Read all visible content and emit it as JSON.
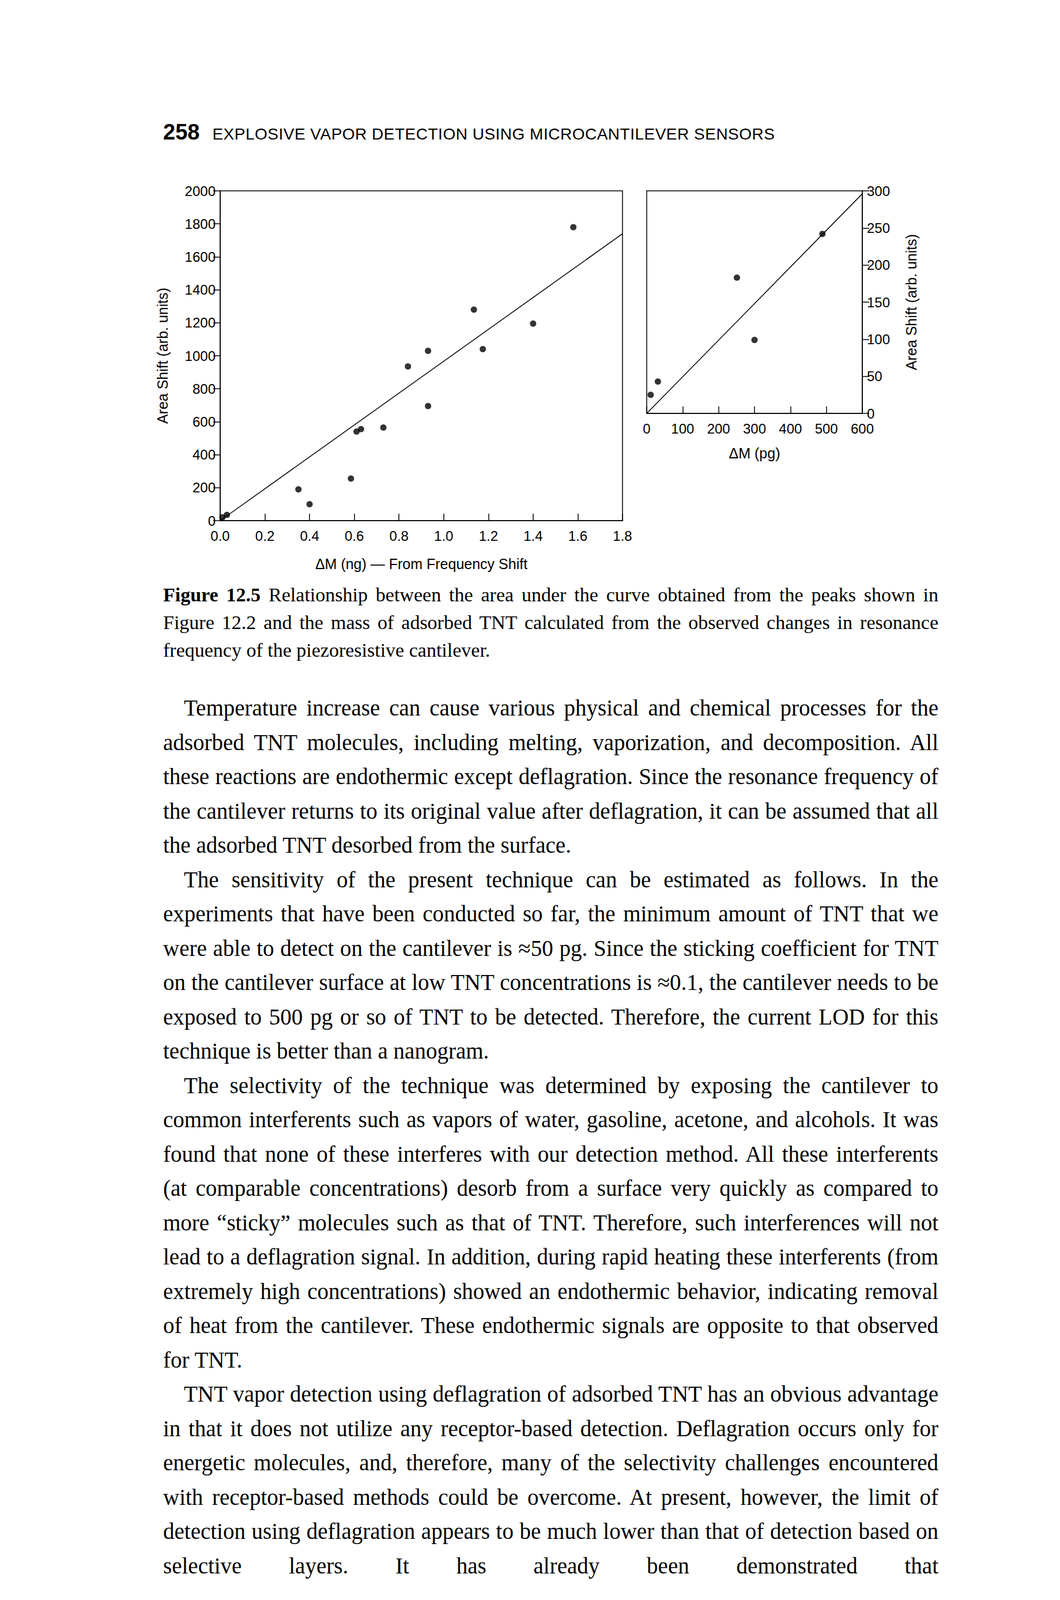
{
  "header": {
    "page_number": "258",
    "running_title": "EXPLOSIVE VAPOR DETECTION USING MICROCANTILEVER SENSORS"
  },
  "chart_data": [
    {
      "type": "scatter",
      "xlabel": "ΔM (ng) — From Frequency Shift",
      "ylabel": "Area Shift (arb. units)",
      "xlim": [
        0,
        1.8
      ],
      "xticks": [
        {
          "value": 0,
          "label": "0.0"
        },
        0.2,
        0.4,
        0.6,
        0.8,
        {
          "value": 1,
          "label": "1.0"
        },
        1.2,
        1.4,
        1.6,
        1.8
      ],
      "ylim": [
        0,
        2000
      ],
      "yticks": [
        0,
        200,
        400,
        600,
        800,
        1000,
        1200,
        1400,
        1600,
        1800,
        2000
      ],
      "grid": false,
      "series": [
        {
          "type": "scatter",
          "color": "#000000",
          "marker": "circle",
          "x": [
            1.58,
            1.135,
            1.4,
            0.93,
            1.175,
            0.84,
            0.93,
            0.61,
            0.63,
            0.73,
            0.585,
            0.35,
            0.4,
            0.03,
            0.01
          ],
          "values": [
            1780,
            1280,
            1195,
            1030,
            1040,
            935,
            695,
            540,
            555,
            565,
            255,
            190,
            100,
            35,
            20
          ]
        },
        {
          "type": "line",
          "color": "#000000",
          "line_style": "solid",
          "x": [
            0,
            1.8
          ],
          "values": [
            0,
            1740
          ]
        }
      ]
    },
    {
      "type": "scatter",
      "xlabel": "ΔM (pg)",
      "ylabel": "Area Shift (arb. units)",
      "xlim": [
        0,
        600
      ],
      "xticks": [
        0,
        100,
        200,
        300,
        400,
        500,
        600
      ],
      "ylim": [
        0,
        300
      ],
      "yticks": [
        0,
        50,
        100,
        150,
        200,
        250,
        300
      ],
      "grid": false,
      "series": [
        {
          "type": "scatter",
          "color": "#000000",
          "marker": "circle",
          "x": [
            489,
            251,
            300,
            31,
            11
          ],
          "values": [
            242,
            183,
            99,
            43,
            25
          ]
        },
        {
          "type": "line",
          "color": "#000000",
          "line_style": "solid",
          "x": [
            0,
            600
          ],
          "values": [
            0,
            296
          ]
        }
      ]
    }
  ],
  "caption": {
    "label": "Figure 12.5",
    "text": "Relationship between the area under the curve obtained from the peaks shown in Figure 12.2 and the mass of adsorbed TNT calculated from the observed changes in resonance frequency of the piezoresistive cantilever."
  },
  "paragraphs": [
    "Temperature increase can cause various physical and chemical processes for the adsorbed TNT molecules, including melting, vaporization, and decomposition. All these reactions are endothermic except deflagration. Since the resonance frequency of the cantilever returns to its original value after deflagration, it can be assumed that all the adsorbed TNT desorbed from the surface.",
    "The sensitivity of the present technique can be estimated as follows. In the experiments that have been conducted so far, the minimum amount of TNT that we were able to detect on the cantilever is ≈50 pg. Since the sticking coefficient for TNT on the cantilever surface at low TNT concentrations is ≈0.1, the cantilever needs to be exposed to 500 pg or so of TNT to be detected. Therefore, the current LOD for this technique is better than a nanogram.",
    "The selectivity of the technique was determined by exposing the cantilever to common interferents such as vapors of water, gasoline, acetone, and alcohols. It was found that none of these interferes with our detection method. All these interferents (at comparable concentrations) desorb from a surface very quickly as compared to more “sticky” molecules such as that of TNT. Therefore, such interferences will not lead to a deflagration signal. In addition, during rapid heating these interferents (from extremely high concentrations) showed an endothermic behavior, indicating removal of heat from the cantilever. These endothermic signals are opposite to that observed for TNT.",
    "TNT vapor detection using deflagration of adsorbed TNT has an obvious advantage in that it does not utilize any receptor-based detection. Deflagration occurs only for energetic molecules, and, therefore, many of the selectivity challenges encountered with receptor-based methods could be overcome. At present, however, the limit of detection using deflagration appears to be much lower than that of detection based on selective layers. It has already been demonstrated that"
  ]
}
